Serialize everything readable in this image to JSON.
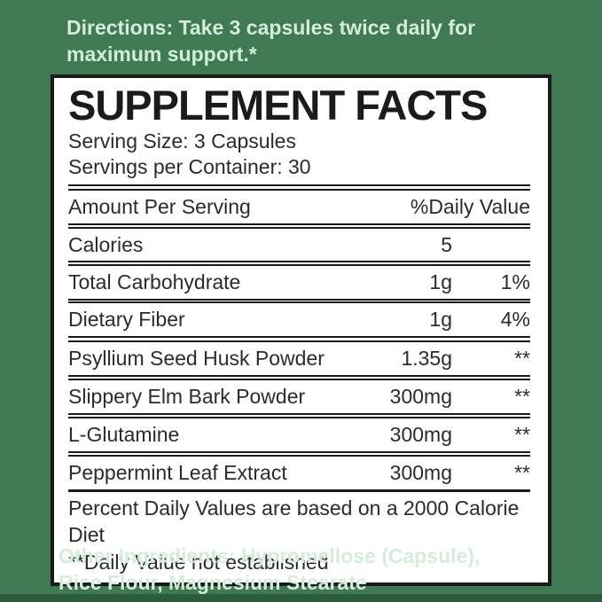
{
  "colors": {
    "background_green": "#3F7A52",
    "bottom_strip_green": "#2E5C3F",
    "mint_text": "#D4EDDA",
    "panel_background": "#FFFFFF",
    "panel_border": "#1A1A1A",
    "panel_text": "#231F20"
  },
  "directions": {
    "text": "Directions: Take 3 capsules twice daily for maximum support.*"
  },
  "panel": {
    "title": "SUPPLEMENT FACTS",
    "serving_size": "Serving Size: 3 Capsules",
    "servings_per_container": "Servings per Container: 30",
    "header": {
      "amount_label": "Amount Per Serving",
      "dv_label": "%Daily Value"
    },
    "rows": [
      {
        "name": "Calories",
        "amount": "5",
        "dv": ""
      },
      {
        "name": "Total Carbohydrate",
        "amount": "1g",
        "dv": "1%"
      },
      {
        "name": "Dietary Fiber",
        "amount": "1g",
        "dv": "4%"
      },
      {
        "name": "Psyllium Seed Husk Powder",
        "amount": "1.35g",
        "dv": "**"
      },
      {
        "name": "Slippery Elm Bark Powder",
        "amount": "300mg",
        "dv": "**"
      },
      {
        "name": "L-Glutamine",
        "amount": "300mg",
        "dv": "**"
      },
      {
        "name": "Peppermint Leaf Extract",
        "amount": "300mg",
        "dv": "**"
      }
    ],
    "footnotes": {
      "daily_values": "Percent Daily Values are based on a 2000 Calorie Diet",
      "not_established": "**Daily Value not established"
    }
  },
  "other_ingredients": {
    "text": "Other Ingredients: Hypromellose (Capsule), Rice Flour, Magnesium Stearate"
  }
}
